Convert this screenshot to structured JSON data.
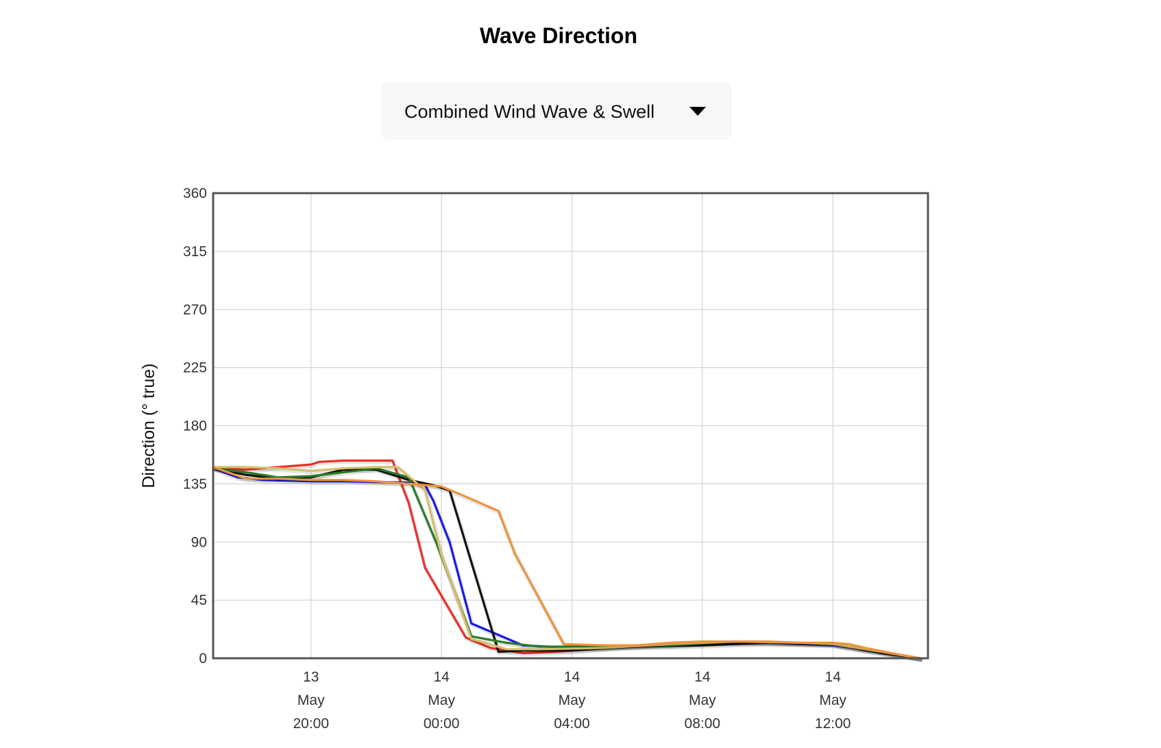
{
  "page": {
    "title": "Wave Direction"
  },
  "selector": {
    "selected": "Combined Wind Wave & Swell"
  },
  "chart_data": {
    "type": "line",
    "ylabel": "Direction (° true)",
    "ylim": [
      0,
      360
    ],
    "yticks": [
      0,
      45,
      90,
      135,
      180,
      225,
      270,
      315,
      360
    ],
    "xlim": [
      "2024-05-13T17:00",
      "2024-05-14T14:55"
    ],
    "xticks": [
      {
        "t": "2024-05-13T20:00",
        "lines": [
          "13",
          "May",
          "20:00"
        ]
      },
      {
        "t": "2024-05-14T00:00",
        "lines": [
          "14",
          "May",
          "00:00"
        ]
      },
      {
        "t": "2024-05-14T04:00",
        "lines": [
          "14",
          "May",
          "04:00"
        ]
      },
      {
        "t": "2024-05-14T08:00",
        "lines": [
          "14",
          "May",
          "08:00"
        ]
      },
      {
        "t": "2024-05-14T12:00",
        "lines": [
          "14",
          "May",
          "12:00"
        ]
      }
    ],
    "grid": true,
    "series": [
      {
        "color": "#e8302a",
        "points": [
          [
            "2024-05-13T17:00",
            147
          ],
          [
            "2024-05-13T18:00",
            146
          ],
          [
            "2024-05-13T19:00",
            148
          ],
          [
            "2024-05-13T20:00",
            150
          ],
          [
            "2024-05-13T20:15",
            152
          ],
          [
            "2024-05-13T21:00",
            153
          ],
          [
            "2024-05-13T22:00",
            153
          ],
          [
            "2024-05-13T22:30",
            153
          ],
          [
            "2024-05-13T23:00",
            120
          ],
          [
            "2024-05-13T23:30",
            70
          ],
          [
            "2024-05-14T00:45",
            16
          ],
          [
            "2024-05-14T01:30",
            8
          ],
          [
            "2024-05-14T02:30",
            4
          ],
          [
            "2024-05-14T03:30",
            5
          ],
          [
            "2024-05-14T05:00",
            8
          ],
          [
            "2024-05-14T06:00",
            10
          ],
          [
            "2024-05-14T08:00",
            12
          ],
          [
            "2024-05-14T10:00",
            12
          ],
          [
            "2024-05-14T12:00",
            11
          ],
          [
            "2024-05-14T13:00",
            6
          ],
          [
            "2024-05-14T14:00",
            3
          ],
          [
            "2024-05-14T14:40",
            0
          ]
        ]
      },
      {
        "color": "#1a1ae6",
        "points": [
          [
            "2024-05-13T17:00",
            147
          ],
          [
            "2024-05-13T17:45",
            140
          ],
          [
            "2024-05-13T18:30",
            138
          ],
          [
            "2024-05-13T20:00",
            137
          ],
          [
            "2024-05-13T21:00",
            137
          ],
          [
            "2024-05-13T23:00",
            136
          ],
          [
            "2024-05-13T23:30",
            134
          ],
          [
            "2024-05-13T23:45",
            122
          ],
          [
            "2024-05-14T00:15",
            90
          ],
          [
            "2024-05-14T00:55",
            27
          ],
          [
            "2024-05-14T01:45",
            18
          ],
          [
            "2024-05-14T02:30",
            10
          ],
          [
            "2024-05-14T04:00",
            8
          ],
          [
            "2024-05-14T06:00",
            9
          ],
          [
            "2024-05-14T08:00",
            11
          ],
          [
            "2024-05-14T10:00",
            12
          ],
          [
            "2024-05-14T12:00",
            10
          ],
          [
            "2024-05-14T13:30",
            5
          ],
          [
            "2024-05-14T14:40",
            0
          ]
        ]
      },
      {
        "color": "#111111",
        "points": [
          [
            "2024-05-13T17:00",
            147
          ],
          [
            "2024-05-13T18:00",
            142
          ],
          [
            "2024-05-13T19:00",
            139
          ],
          [
            "2024-05-13T20:00",
            140
          ],
          [
            "2024-05-13T21:00",
            146
          ],
          [
            "2024-05-13T22:00",
            146
          ],
          [
            "2024-05-13T23:00",
            138
          ],
          [
            "2024-05-13T23:45",
            134
          ],
          [
            "2024-05-14T00:15",
            130
          ],
          [
            "2024-05-14T01:45",
            5
          ],
          [
            "2024-05-14T02:30",
            6
          ],
          [
            "2024-05-14T04:00",
            6
          ],
          [
            "2024-05-14T06:00",
            9
          ],
          [
            "2024-05-14T08:00",
            10
          ],
          [
            "2024-05-14T10:00",
            12
          ],
          [
            "2024-05-14T12:00",
            11
          ],
          [
            "2024-05-14T13:30",
            4
          ],
          [
            "2024-05-14T14:40",
            0
          ]
        ]
      },
      {
        "color": "#2a7d2a",
        "points": [
          [
            "2024-05-13T17:00",
            147
          ],
          [
            "2024-05-13T18:00",
            144
          ],
          [
            "2024-05-13T19:00",
            140
          ],
          [
            "2024-05-13T20:00",
            141
          ],
          [
            "2024-05-13T21:00",
            144
          ],
          [
            "2024-05-13T22:00",
            147
          ],
          [
            "2024-05-13T23:00",
            140
          ],
          [
            "2024-05-13T23:50",
            90
          ],
          [
            "2024-05-14T00:55",
            17
          ],
          [
            "2024-05-14T02:00",
            12
          ],
          [
            "2024-05-14T03:00",
            9
          ],
          [
            "2024-05-14T05:00",
            9
          ],
          [
            "2024-05-14T07:00",
            10
          ],
          [
            "2024-05-14T09:00",
            13
          ],
          [
            "2024-05-14T11:00",
            12
          ],
          [
            "2024-05-14T12:00",
            11
          ],
          [
            "2024-05-14T13:30",
            5
          ],
          [
            "2024-05-14T14:40",
            0
          ]
        ]
      },
      {
        "color": "#d6bf6a",
        "points": [
          [
            "2024-05-13T17:00",
            148
          ],
          [
            "2024-05-13T18:00",
            148
          ],
          [
            "2024-05-13T19:00",
            147
          ],
          [
            "2024-05-13T20:00",
            145
          ],
          [
            "2024-05-13T21:00",
            147
          ],
          [
            "2024-05-13T22:00",
            148
          ],
          [
            "2024-05-13T22:40",
            148
          ],
          [
            "2024-05-13T23:30",
            130
          ],
          [
            "2024-05-14T00:00",
            80
          ],
          [
            "2024-05-14T00:55",
            15
          ],
          [
            "2024-05-14T02:00",
            7
          ],
          [
            "2024-05-14T03:00",
            7
          ],
          [
            "2024-05-14T05:00",
            8
          ],
          [
            "2024-05-14T07:00",
            11
          ],
          [
            "2024-05-14T09:00",
            13
          ],
          [
            "2024-05-14T11:00",
            12
          ],
          [
            "2024-05-14T12:00",
            11
          ],
          [
            "2024-05-14T13:30",
            5
          ],
          [
            "2024-05-14T14:40",
            0
          ]
        ]
      },
      {
        "color": "#f0923a",
        "points": [
          [
            "2024-05-13T17:00",
            148
          ],
          [
            "2024-05-13T18:00",
            139
          ],
          [
            "2024-05-13T19:00",
            139
          ],
          [
            "2024-05-13T20:00",
            138
          ],
          [
            "2024-05-13T21:00",
            138
          ],
          [
            "2024-05-13T22:00",
            137
          ],
          [
            "2024-05-13T23:00",
            135
          ],
          [
            "2024-05-14T00:00",
            133
          ],
          [
            "2024-05-14T00:45",
            125
          ],
          [
            "2024-05-14T01:45",
            114
          ],
          [
            "2024-05-14T02:15",
            81
          ],
          [
            "2024-05-14T03:45",
            11
          ],
          [
            "2024-05-14T05:00",
            10
          ],
          [
            "2024-05-14T06:00",
            10
          ],
          [
            "2024-05-14T07:00",
            12
          ],
          [
            "2024-05-14T08:00",
            13
          ],
          [
            "2024-05-14T09:00",
            13
          ],
          [
            "2024-05-14T10:00",
            13
          ],
          [
            "2024-05-14T11:00",
            12
          ],
          [
            "2024-05-14T12:00",
            12
          ],
          [
            "2024-05-14T12:30",
            11
          ],
          [
            "2024-05-14T13:00",
            8
          ],
          [
            "2024-05-14T14:00",
            3
          ],
          [
            "2024-05-14T14:40",
            0
          ]
        ]
      }
    ]
  }
}
